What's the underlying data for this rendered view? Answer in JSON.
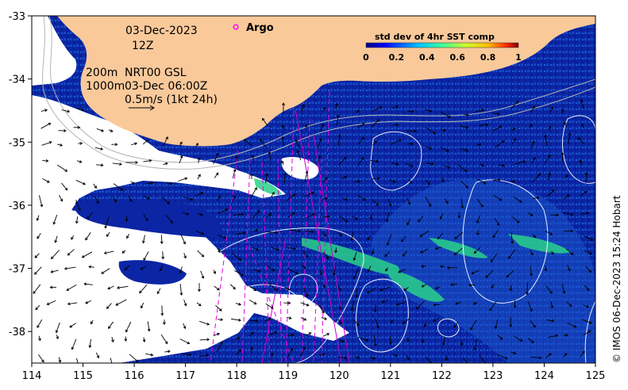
{
  "map": {
    "date_label": "03-Dec-2023",
    "time_label": "12Z",
    "legend_200m": "200m",
    "legend_1000m": "1000m",
    "product_label": "NRT00 GSL",
    "product_time": "03-Dec 06:00Z",
    "arrow_scale_label": "0.5m/s (1kt 24h)",
    "argo_label": "Argo",
    "credit": "© IMOS 06-Dec-2023 15:24 Hobart",
    "x_ticks": [
      "114",
      "115",
      "116",
      "117",
      "118",
      "119",
      "120",
      "121",
      "122",
      "123",
      "124",
      "125"
    ],
    "y_ticks": [
      "-33",
      "-34",
      "-35",
      "-36",
      "-37",
      "-38"
    ],
    "x_range": [
      114,
      125
    ],
    "y_range": [
      -38.5,
      -33
    ],
    "colors": {
      "land": "#f9c99a",
      "no_data": "#ffffff",
      "ocean_base": "#0a23a0",
      "ocean_light": "#1e50c8",
      "argo_marker": "#ff00ff",
      "track_lines": "#e600e6"
    }
  },
  "colorbar": {
    "title": "std dev of 4hr SST comp",
    "ticks": [
      "0",
      "0.2",
      "0.4",
      "0.6",
      "0.8",
      "1"
    ],
    "range": [
      0,
      1
    ]
  }
}
